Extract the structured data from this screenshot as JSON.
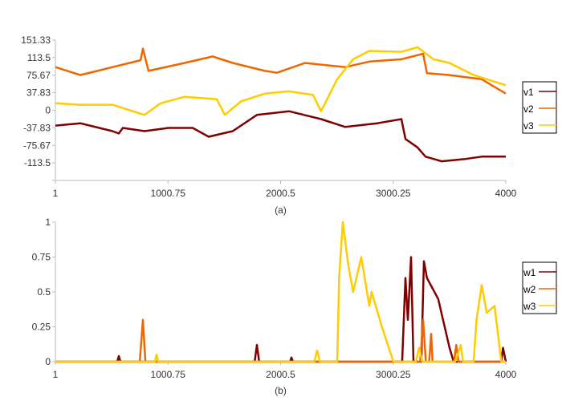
{
  "chart_data": [
    {
      "type": "line",
      "caption": "(a)",
      "xlim": [
        1,
        4000
      ],
      "ylim": [
        -151.33,
        151.33
      ],
      "xticks": [
        "1",
        "1000.75",
        "2000.5",
        "3000.25",
        "4000"
      ],
      "yticks": [
        "151.33",
        "113.5",
        "75.67",
        "37.83",
        "0",
        "-37.83",
        "-75.67",
        "-113.5"
      ],
      "legend": "right",
      "series": [
        {
          "name": "v1",
          "color": "#800000",
          "x": [
            1,
            222,
            507,
            564,
            600,
            792,
            1006,
            1220,
            1362,
            1576,
            1790,
            2075,
            2360,
            2574,
            2859,
            3073,
            3109,
            3216,
            3287,
            3430,
            3643,
            3786,
            4000
          ],
          "y": [
            -33,
            -28,
            -45,
            -50,
            -38,
            -45,
            -38,
            -38,
            -57,
            -45,
            -10,
            -2,
            -19,
            -36,
            -28,
            -19,
            -62,
            -80,
            -100,
            -110,
            -105,
            -100,
            -100
          ]
        },
        {
          "name": "v2",
          "color": "#ee6600",
          "x": [
            1,
            222,
            507,
            757,
            778,
            828,
            1149,
            1398,
            1576,
            1861,
            1968,
            2218,
            2574,
            2788,
            3073,
            3266,
            3300,
            3500,
            3786,
            4000
          ],
          "y": [
            93,
            76,
            93,
            108,
            133,
            85,
            102,
            116,
            102,
            85,
            81,
            102,
            93,
            105,
            110,
            122,
            80,
            76,
            67,
            36
          ]
        },
        {
          "name": "v3",
          "color": "#ffcc00",
          "x": [
            1,
            222,
            507,
            792,
            935,
            1149,
            1434,
            1505,
            1648,
            1861,
            2075,
            2289,
            2360,
            2503,
            2645,
            2788,
            3073,
            3216,
            3358,
            3500,
            3714,
            4000
          ],
          "y": [
            15,
            12,
            12,
            -10,
            15,
            29,
            24,
            -10,
            19,
            36,
            41,
            33,
            -2,
            67,
            110,
            128,
            126,
            136,
            110,
            102,
            76,
            54
          ]
        }
      ]
    },
    {
      "type": "line",
      "caption": "(b)",
      "xlim": [
        1,
        4000
      ],
      "ylim": [
        0,
        1
      ],
      "xticks": [
        "1",
        "1000.75",
        "2000.5",
        "3000.25",
        "4000"
      ],
      "yticks": [
        "1",
        "0.75",
        "0.5",
        "0.25",
        "0"
      ],
      "legend": "right",
      "series": [
        {
          "name": "w1",
          "color": "#800000",
          "x": [
            1,
            550,
            564,
            578,
            1770,
            1790,
            1810,
            2085,
            2097,
            2110,
            3080,
            3109,
            3130,
            3159,
            3180,
            3250,
            3273,
            3300,
            3400,
            3500,
            3537,
            3960,
            3975,
            4000
          ],
          "y": [
            0,
            0,
            0.04,
            0,
            0,
            0.12,
            0,
            0,
            0.03,
            0,
            0,
            0.6,
            0.3,
            0.75,
            0,
            0,
            0.72,
            0.6,
            0.45,
            0.1,
            0,
            0,
            0.1,
            0
          ]
        },
        {
          "name": "w2",
          "color": "#ee6600",
          "x": [
            1,
            750,
            778,
            800,
            3240,
            3266,
            3290,
            3320,
            3337,
            3350,
            3540,
            3560,
            3580,
            4000
          ],
          "y": [
            0,
            0,
            0.3,
            0,
            0,
            0.3,
            0,
            0,
            0.2,
            0,
            0,
            0.12,
            0,
            0
          ]
        },
        {
          "name": "w3",
          "color": "#ffcc00",
          "x": [
            1,
            885,
            899,
            915,
            2300,
            2325,
            2350,
            2503,
            2520,
            2553,
            2600,
            2645,
            2717,
            2788,
            2809,
            2900,
            3002,
            3200,
            3230,
            3260,
            3550,
            3600,
            3620,
            3714,
            3740,
            3786,
            3830,
            3900,
            3960,
            4000
          ],
          "y": [
            0,
            0,
            0.05,
            0,
            0,
            0.08,
            0,
            0,
            0.6,
            1,
            0.7,
            0.5,
            0.75,
            0.4,
            0.5,
            0.25,
            0,
            0,
            0.1,
            0,
            0,
            0.12,
            0,
            0,
            0.3,
            0.55,
            0.35,
            0.4,
            0,
            0
          ]
        }
      ]
    }
  ]
}
